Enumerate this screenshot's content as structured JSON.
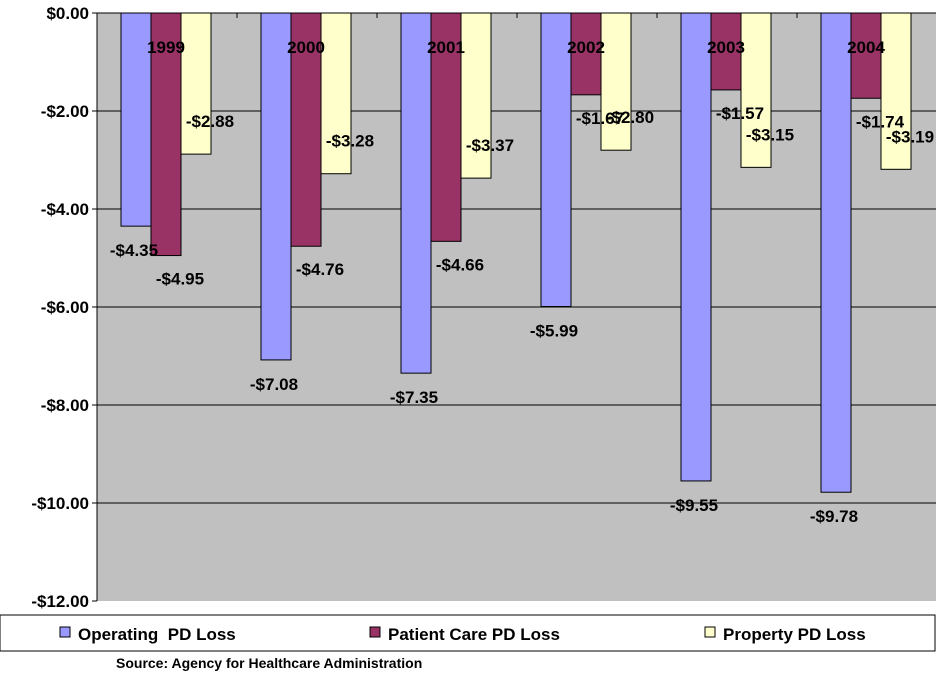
{
  "chart_data": {
    "type": "bar",
    "categories": [
      "1999",
      "2000",
      "2001",
      "2002",
      "2003",
      "2004"
    ],
    "series": [
      {
        "name": "Operating  PD Loss",
        "color": "#9999ff",
        "values": [
          -4.35,
          -7.08,
          -7.35,
          -5.99,
          -9.55,
          -9.78
        ],
        "labels": [
          "-$4.35",
          "-$7.08",
          "-$7.35",
          "-$5.99",
          "-$9.55",
          "-$9.78"
        ]
      },
      {
        "name": "Patient Care PD Loss",
        "color": "#993366",
        "values": [
          -4.95,
          -4.76,
          -4.66,
          -1.67,
          -1.57,
          -1.74
        ],
        "labels": [
          "-$4.95",
          "-$4.76",
          "-$4.66",
          "-$1.67",
          "-$1.57",
          "-$1.74"
        ]
      },
      {
        "name": "Property PD Loss",
        "color": "#ffffcc",
        "values": [
          -2.88,
          -3.28,
          -3.37,
          -2.8,
          -3.15,
          -3.19
        ],
        "labels": [
          "-$2.88",
          "-$3.28",
          "-$3.37",
          "-$2.80",
          "-$3.15",
          "-$3.19"
        ]
      }
    ],
    "y_ticks": [
      0,
      -2,
      -4,
      -6,
      -8,
      -10,
      -12
    ],
    "y_tick_labels": [
      "$0.00",
      "-$2.00",
      "-$4.00",
      "-$6.00",
      "-$8.00",
      "-$10.00",
      "-$12.00"
    ],
    "ylim": [
      -12,
      0
    ],
    "grid": true,
    "plot_background": "#c0c0c0",
    "legend_position": "bottom",
    "title": "",
    "xlabel": "",
    "ylabel": ""
  },
  "source": "Source: Agency for Healthcare Administration"
}
